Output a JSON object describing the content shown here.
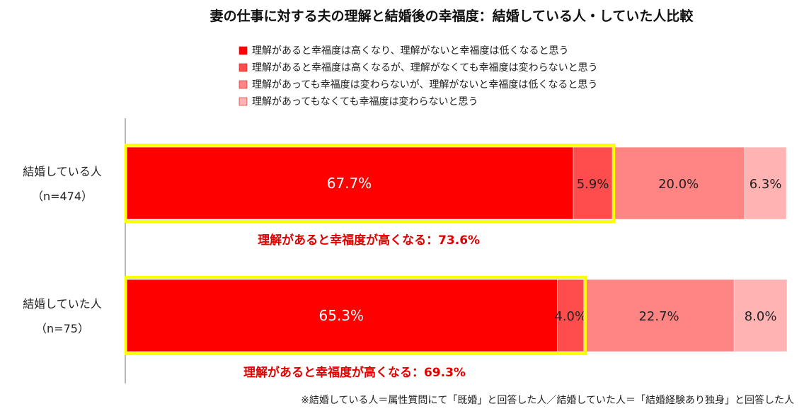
{
  "chart_data": {
    "type": "bar",
    "orientation": "horizontal",
    "stacked": true,
    "percent": true,
    "title": "妻の仕事に対する夫の理解と結婚後の幸福度：結婚している人・していた人比較",
    "legend_position": "top",
    "categories": [
      {
        "label": "結婚している人",
        "n_label": "（n=474）"
      },
      {
        "label": "結婚していた人",
        "n_label": "（n=75）"
      }
    ],
    "series": [
      {
        "name": "理解があると幸福度は高くなり、理解がないと幸福度は低くなると思う",
        "color": "#ff0000",
        "values": [
          67.7,
          65.3
        ],
        "labels": [
          "67.7%",
          "65.3%"
        ]
      },
      {
        "name": "理解があると幸福度は高くなるが、理解がなくても幸福度は変わらないと思う",
        "color": "#ff4c4c",
        "values": [
          5.9,
          4.0
        ],
        "labels": [
          "5.9%",
          "4.0%"
        ]
      },
      {
        "name": "理解があっても幸福度は変わらないが、理解がないと幸福度は低くなると思う",
        "color": "#ff8585",
        "values": [
          20.0,
          22.7
        ],
        "labels": [
          "20.0%",
          "22.7%"
        ]
      },
      {
        "name": "理解があってもなくても幸福度は変わらないと思う",
        "color": "#ffb3b3",
        "values": [
          6.3,
          8.0
        ],
        "labels": [
          "6.3%",
          "8.0%"
        ]
      }
    ],
    "xlim": [
      0,
      100
    ],
    "highlight_color": "#ffff00",
    "highlight_text_color": "#e00000",
    "annotations": [
      "理解があると幸福度が高くなる：73.6%",
      "理解があると幸福度が高くなる：69.3%"
    ],
    "footnote": "※結婚している人＝属性質問にて「既婚」と回答した人／結婚していた人＝「結婚経験あり独身」と回答した人"
  }
}
